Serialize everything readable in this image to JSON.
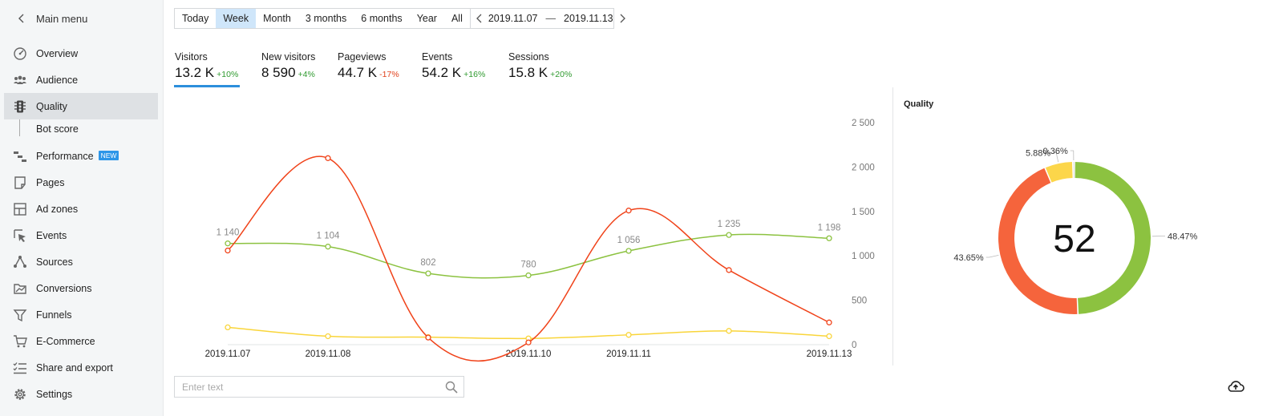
{
  "sidebar": {
    "main_menu": "Main menu",
    "items": [
      {
        "label": "Overview",
        "icon": "gauge-icon"
      },
      {
        "label": "Audience",
        "icon": "users-icon"
      },
      {
        "label": "Quality",
        "icon": "traffic-light-icon",
        "active": true
      },
      {
        "label": "Performance",
        "icon": "gantt-icon",
        "badge": "NEW"
      },
      {
        "label": "Pages",
        "icon": "page-icon"
      },
      {
        "label": "Ad zones",
        "icon": "layout-icon"
      },
      {
        "label": "Events",
        "icon": "cursor-icon"
      },
      {
        "label": "Sources",
        "icon": "network-icon"
      },
      {
        "label": "Conversions",
        "icon": "folder-chart-icon"
      },
      {
        "label": "Funnels",
        "icon": "funnel-icon"
      },
      {
        "label": "E-Commerce",
        "icon": "cart-icon"
      },
      {
        "label": "Share and export",
        "icon": "checklist-icon"
      },
      {
        "label": "Settings",
        "icon": "gear-icon"
      }
    ],
    "sub_item": "Bot score"
  },
  "period": {
    "buttons": [
      "Today",
      "Week",
      "Month",
      "3 months",
      "6 months",
      "Year",
      "All"
    ],
    "selected": "Week",
    "date_from": "2019.11.07",
    "date_to": "2019.11.13"
  },
  "metrics": [
    {
      "title": "Visitors",
      "value": "13.2 K",
      "change": "+10%",
      "trend": "up"
    },
    {
      "title": "New visitors",
      "value": "8 590",
      "change": "+4%",
      "trend": "up"
    },
    {
      "title": "Pageviews",
      "value": "44.7 K",
      "change": "-17%",
      "trend": "down"
    },
    {
      "title": "Events",
      "value": "54.2 K",
      "change": "+16%",
      "trend": "up"
    },
    {
      "title": "Sessions",
      "value": "15.8 K",
      "change": "+20%",
      "trend": "up"
    }
  ],
  "colors": {
    "green": "#8cc240",
    "red": "#f0431a",
    "yellow": "#f9d53a",
    "donut_red": "#f5643c",
    "donut_yellow": "#fcd64a",
    "donut_gray": "#dcdcdc",
    "accent": "#2c8fdc"
  },
  "chart_data": [
    {
      "type": "line",
      "x": [
        "2019.11.07",
        "2019.11.08",
        "2019.11.09",
        "2019.11.10",
        "2019.11.11",
        "2019.11.12",
        "2019.11.13"
      ],
      "x_tick_labels": [
        "2019.11.07",
        "2019.11.08",
        "",
        "2019.11.10",
        "2019.11.11",
        "",
        "2019.11.13"
      ],
      "y_ticks": [
        0,
        500,
        1000,
        1500,
        2000,
        2500
      ],
      "y_tick_labels": [
        "0",
        "500",
        "1 000",
        "1 500",
        "2 000",
        "2 500"
      ],
      "ylim": [
        0,
        2500
      ],
      "y_axis_side": "right",
      "series": [
        {
          "color": "#8cc240",
          "values": [
            1140,
            1104,
            802,
            780,
            1056,
            1235,
            1198
          ],
          "data_labels": [
            "1 140",
            "1 104",
            "802",
            "780",
            "1 056",
            "1 235",
            "1 198"
          ]
        },
        {
          "color": "#f0431a",
          "values": [
            1060,
            2100,
            80,
            25,
            1510,
            840,
            250
          ]
        },
        {
          "color": "#f9d53a",
          "values": [
            195,
            95,
            85,
            70,
            110,
            155,
            95
          ]
        }
      ],
      "grid": false
    },
    {
      "type": "pie",
      "title": "Quality",
      "center_label": "52",
      "slices": [
        {
          "label": "48.47%",
          "value": 48.47,
          "color": "#8cc240"
        },
        {
          "label": "43.65%",
          "value": 43.65,
          "color": "#f5643c"
        },
        {
          "label": "5.88%",
          "value": 5.88,
          "color": "#fcd64a"
        },
        {
          "label": "0.36%",
          "value": 0.36,
          "color": "#dcdcdc"
        }
      ]
    }
  ],
  "search": {
    "placeholder": "Enter text",
    "value": ""
  }
}
